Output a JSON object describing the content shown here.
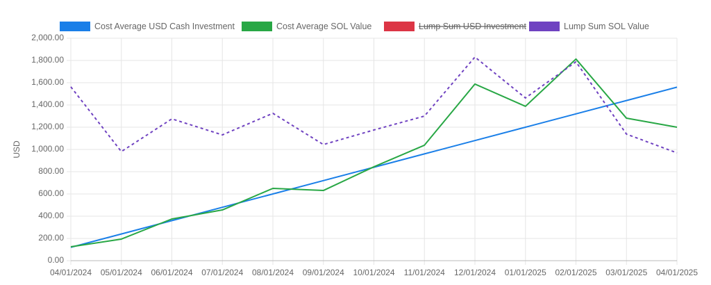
{
  "chart_data": {
    "type": "line",
    "y_label": "USD",
    "categories": [
      "04/01/2024",
      "05/01/2024",
      "06/01/2024",
      "07/01/2024",
      "08/01/2024",
      "09/01/2024",
      "10/01/2024",
      "11/01/2024",
      "12/01/2024",
      "01/01/2025",
      "02/01/2025",
      "03/01/2025",
      "04/01/2025"
    ],
    "ylim": [
      0,
      2000
    ],
    "yticks": [
      {
        "value": 0,
        "label": "0.00"
      },
      {
        "value": 200,
        "label": "200.00"
      },
      {
        "value": 400,
        "label": "400.00"
      },
      {
        "value": 600,
        "label": "600.00"
      },
      {
        "value": 800,
        "label": "800.00"
      },
      {
        "value": 1000,
        "label": "1,000.00"
      },
      {
        "value": 1200,
        "label": "1,200.00"
      },
      {
        "value": 1400,
        "label": "1,400.00"
      },
      {
        "value": 1600,
        "label": "1,600.00"
      },
      {
        "value": 1800,
        "label": "1,800.00"
      },
      {
        "value": 2000,
        "label": "2,000.00"
      }
    ],
    "grid": true,
    "legend": "top",
    "series": [
      {
        "name": "Cost Average USD Cash Investment",
        "color": "#1a7fe8",
        "values": [
          120,
          240,
          360,
          480,
          600,
          720,
          840,
          960,
          1080,
          1200,
          1320,
          1440,
          1560
        ]
      },
      {
        "name": "Cost Average SOL Value",
        "color": "#28a745",
        "values": [
          125,
          194,
          375,
          456,
          650,
          631,
          844,
          1038,
          1588,
          1388,
          1813,
          1281,
          1200
        ]
      },
      {
        "name": "Lump Sum USD Investment",
        "color": "#dc3545",
        "hidden": true
      },
      {
        "name": "Lump Sum SOL Value",
        "color": "#6f42c1",
        "dashed": true,
        "values": [
          1563,
          981,
          1275,
          1131,
          1325,
          1044,
          1175,
          1300,
          1831,
          1463,
          1788,
          1138,
          969
        ]
      }
    ]
  }
}
